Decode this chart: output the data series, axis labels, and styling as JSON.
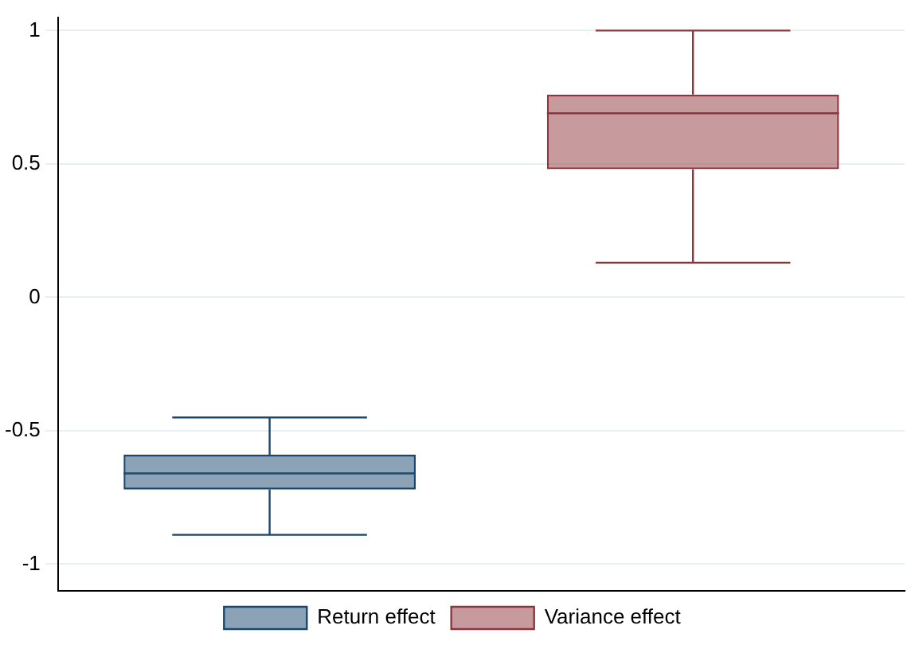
{
  "chart_data": {
    "type": "box",
    "categories": [
      null
    ],
    "ylim": [
      -1.1,
      1.05
    ],
    "yticks": [
      -1,
      -0.5,
      0,
      0.5,
      1
    ],
    "grid": "y",
    "legend": "bottom",
    "tick_labels": "y",
    "series": [
      {
        "name": "Return effect",
        "color": "#1a476f",
        "boxes": [
          {
            "low": -0.89,
            "q1": -0.72,
            "median": -0.66,
            "q3": -0.59,
            "high": -0.45
          }
        ]
      },
      {
        "name": "Variance effect",
        "color": "#90353b",
        "boxes": [
          {
            "low": 0.13,
            "q1": 0.48,
            "median": 0.69,
            "q3": 0.76,
            "high": 1
          }
        ]
      }
    ]
  }
}
